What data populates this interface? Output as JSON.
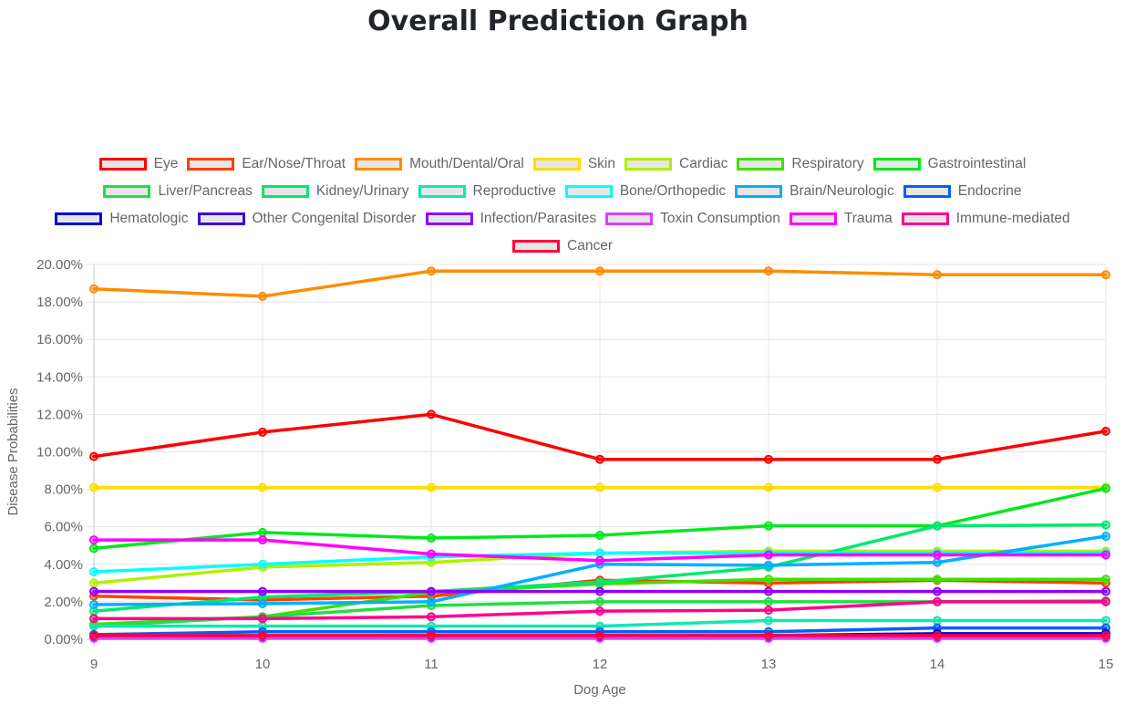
{
  "page": {
    "title": "Overall Prediction Graph"
  },
  "chart_data": {
    "type": "line",
    "title": "Overall Prediction Graph",
    "xlabel": "Dog Age",
    "ylabel": "Disease Probabilities",
    "x": [
      9,
      10,
      11,
      12,
      13,
      14,
      15
    ],
    "x_tick_labels": [
      "9",
      "10",
      "11",
      "12",
      "13",
      "14",
      "15"
    ],
    "ylim": [
      0,
      20
    ],
    "y_tick_labels": [
      "0.00%",
      "2.00%",
      "4.00%",
      "6.00%",
      "8.00%",
      "10.00%",
      "12.00%",
      "14.00%",
      "16.00%",
      "18.00%",
      "20.00%"
    ],
    "grid": true,
    "legend_position": "top",
    "series": [
      {
        "name": "Eye",
        "color": "#ff0000",
        "values": [
          9.75,
          11.05,
          12.0,
          9.6,
          9.6,
          9.6,
          11.1
        ]
      },
      {
        "name": "Ear/Nose/Throat",
        "color": "#ff4000",
        "values": [
          2.3,
          2.1,
          2.3,
          3.15,
          3.0,
          3.15,
          3.0
        ]
      },
      {
        "name": "Mouth/Dental/Oral",
        "color": "#ff8c00",
        "values": [
          18.7,
          18.3,
          19.65,
          19.65,
          19.65,
          19.45,
          19.45
        ]
      },
      {
        "name": "Skin",
        "color": "#ffdd00",
        "values": [
          8.1,
          8.1,
          8.1,
          8.1,
          8.1,
          8.1,
          8.1
        ]
      },
      {
        "name": "Cardiac",
        "color": "#b0f000",
        "values": [
          3.0,
          3.85,
          4.1,
          4.6,
          4.7,
          4.7,
          4.7
        ]
      },
      {
        "name": "Respiratory",
        "color": "#40e000",
        "values": [
          0.8,
          1.2,
          2.5,
          2.95,
          3.2,
          3.2,
          3.2
        ]
      },
      {
        "name": "Gastrointestinal",
        "color": "#00e81c",
        "values": [
          4.85,
          5.7,
          5.4,
          5.55,
          6.05,
          6.05,
          8.05
        ]
      },
      {
        "name": "Liver/Pancreas",
        "color": "#20e040",
        "values": [
          0.7,
          1.2,
          1.8,
          2.0,
          2.0,
          2.0,
          2.05
        ]
      },
      {
        "name": "Kidney/Urinary",
        "color": "#00e870",
        "values": [
          1.5,
          2.25,
          2.55,
          3.05,
          3.85,
          6.05,
          6.1
        ]
      },
      {
        "name": "Reproductive",
        "color": "#10e8b0",
        "values": [
          0.7,
          0.7,
          0.7,
          0.7,
          1.0,
          1.0,
          1.0
        ]
      },
      {
        "name": "Bone/Orthopedic",
        "color": "#00ffff",
        "values": [
          3.6,
          4.0,
          4.4,
          4.6,
          4.6,
          4.6,
          4.6
        ]
      },
      {
        "name": "Brain/Neurologic",
        "color": "#00b0ff",
        "values": [
          1.85,
          1.9,
          2.0,
          4.0,
          3.95,
          4.1,
          5.5
        ]
      },
      {
        "name": "Endocrine",
        "color": "#0060ff",
        "values": [
          0.25,
          0.4,
          0.4,
          0.4,
          0.4,
          0.6,
          0.6
        ]
      },
      {
        "name": "Hematologic",
        "color": "#0000e0",
        "values": [
          0.1,
          0.15,
          0.2,
          0.2,
          0.2,
          0.3,
          0.3
        ]
      },
      {
        "name": "Other Congenital Disorder",
        "color": "#3f00e0",
        "values": [
          0.15,
          0.1,
          0.1,
          0.1,
          0.1,
          0.1,
          0.1
        ]
      },
      {
        "name": "Infection/Parasites",
        "color": "#9000ff",
        "values": [
          2.55,
          2.55,
          2.55,
          2.55,
          2.55,
          2.55,
          2.55
        ]
      },
      {
        "name": "Toxin Consumption",
        "color": "#d840ff",
        "values": [
          0.05,
          0.05,
          0.05,
          0.05,
          0.05,
          0.05,
          0.05
        ]
      },
      {
        "name": "Trauma",
        "color": "#ff00ff",
        "values": [
          5.3,
          5.3,
          4.55,
          4.2,
          4.5,
          4.5,
          4.5
        ]
      },
      {
        "name": "Immune-mediated",
        "color": "#ff0090",
        "values": [
          1.1,
          1.1,
          1.2,
          1.5,
          1.55,
          2.0,
          2.0
        ]
      },
      {
        "name": "Cancer",
        "color": "#ff0040",
        "values": [
          0.2,
          0.2,
          0.2,
          0.2,
          0.2,
          0.2,
          0.2
        ]
      }
    ]
  },
  "legend_rows": [
    [
      "Eye",
      "Ear/Nose/Throat",
      "Mouth/Dental/Oral",
      "Skin",
      "Cardiac",
      "Respiratory",
      "Gastrointestinal"
    ],
    [
      "Liver/Pancreas",
      "Kidney/Urinary",
      "Reproductive",
      "Bone/Orthopedic",
      "Brain/Neurologic",
      "Endocrine"
    ],
    [
      "Hematologic",
      "Other Congenital Disorder",
      "Infection/Parasites",
      "Toxin Consumption",
      "Trauma",
      "Immune-mediated"
    ],
    [
      "Cancer"
    ]
  ]
}
